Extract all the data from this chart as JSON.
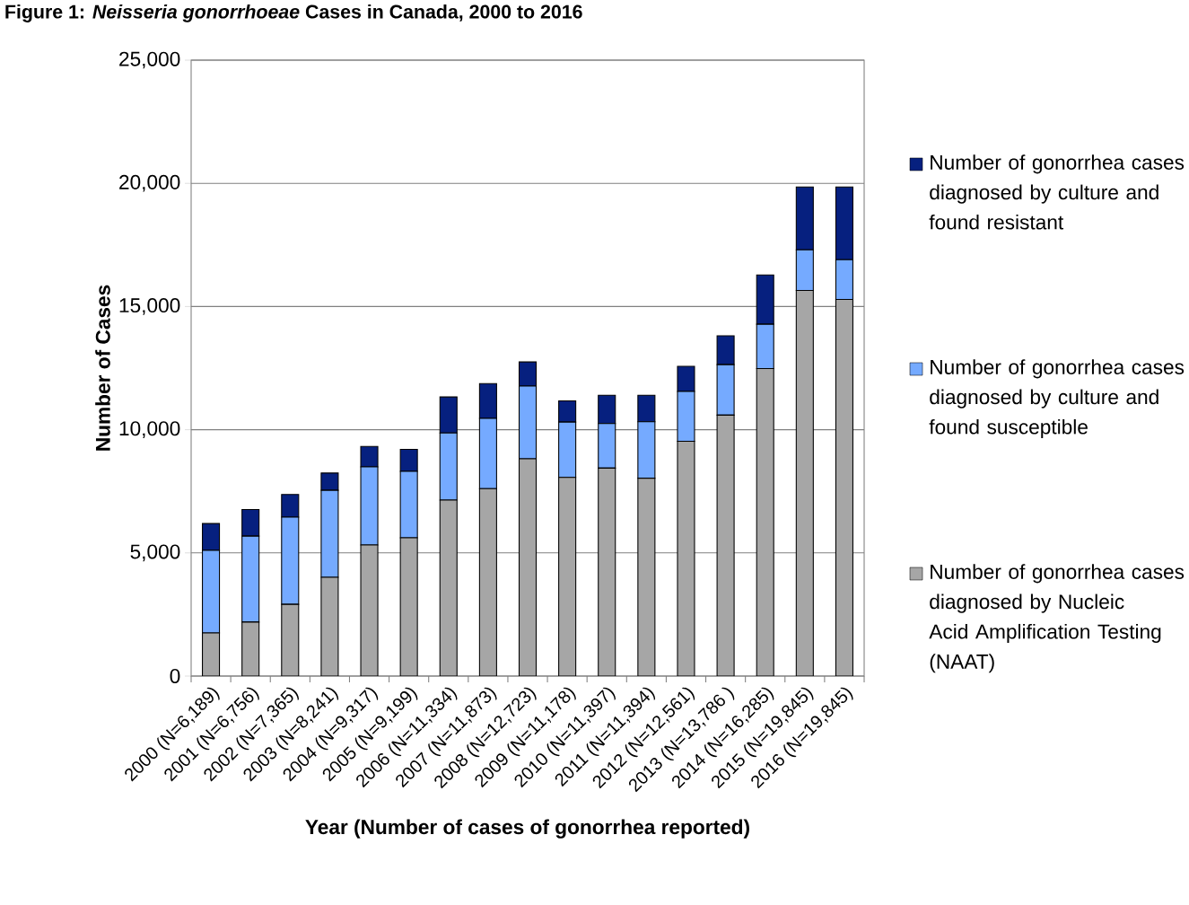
{
  "chart_data": {
    "type": "bar",
    "stacked": true,
    "title": "Figure 1: *Neisseria gonorrhoeae* Cases in Canada, 2000 to 2016",
    "xlabel": "Year (Number of cases of gonorrhea reported)",
    "ylabel": "Number of Cases",
    "categories": [
      "2000 (N=6,189)",
      "2001 (N=6,756)",
      "2002 (N=7,365)",
      "2003 (N=8,241)",
      "2004 (N=9,317)",
      "2005 (N=9,199)",
      "2006 (N=11,334)",
      "2007 (N=11,873)",
      "2008 (N=12,723)",
      "2009 (N=11,178)",
      "2010 (N=11,397)",
      "2011 (N=11,394)",
      "2012 (N=12,561)",
      "2013 (N=13,786 )",
      "2014 (N=16,285)",
      "2015 (N=19,845)",
      "2016 (N=19,845)"
    ],
    "series": [
      {
        "name": "Number of gonorrhea cases diagnosed by Nucleic Acid Amplification Testing (NAAT)",
        "color": "#a6a6a6",
        "values": [
          1750,
          2190,
          2910,
          4010,
          5320,
          5610,
          7140,
          7610,
          8820,
          8060,
          8440,
          8030,
          9530,
          10590,
          12480,
          15650,
          15290
        ]
      },
      {
        "name": "Number of gonorrhea cases diagnosed by culture and found susceptible",
        "color": "#75aaff",
        "values": [
          3350,
          3490,
          3540,
          3530,
          3170,
          2700,
          2730,
          2850,
          2950,
          2250,
          1810,
          2290,
          2020,
          2050,
          1800,
          1650,
          1610
        ]
      },
      {
        "name": "Number of gonorrhea cases diagnosed by culture and found resistant",
        "color": "#06207f",
        "values": [
          1090,
          1080,
          920,
          700,
          830,
          890,
          1460,
          1410,
          980,
          860,
          1150,
          1080,
          1020,
          1170,
          2000,
          2550,
          2950
        ]
      }
    ],
    "ylim": [
      0,
      25000
    ],
    "yticks": [
      {
        "value": 0,
        "label": "0"
      },
      {
        "value": 5000,
        "label": "5,000"
      },
      {
        "value": 10000,
        "label": "10,000"
      },
      {
        "value": 15000,
        "label": "15,000"
      },
      {
        "value": 20000,
        "label": "20,000"
      },
      {
        "value": 25000,
        "label": "25,000"
      }
    ],
    "grid": "y",
    "legend": "right"
  }
}
